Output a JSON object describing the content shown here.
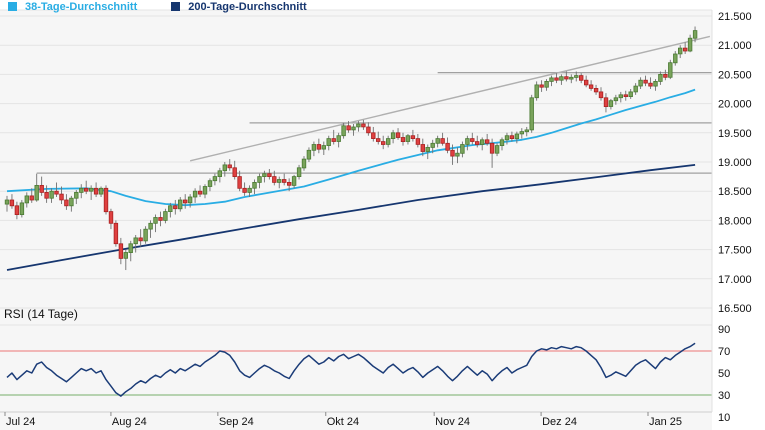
{
  "legend": {
    "items": [
      {
        "label": "38-Tage-Durchschnitt",
        "color": "#29ade4"
      },
      {
        "label": "200-Tage-Durchschnitt",
        "color": "#16366f"
      }
    ]
  },
  "rsi": {
    "title": "RSI (14 Tage)"
  },
  "chart_data": [
    {
      "type": "candlestick",
      "title": "",
      "y_axis": {
        "labels": [
          "21.500",
          "21.000",
          "20.500",
          "20.000",
          "19.500",
          "19.000",
          "18.500",
          "18.000",
          "17.500",
          "17.000",
          "16.500"
        ],
        "values": [
          21.5,
          21.0,
          20.5,
          20.0,
          19.5,
          19.0,
          18.5,
          18.0,
          17.5,
          17.0,
          16.5
        ],
        "range": [
          16.5,
          21.5
        ]
      },
      "x_axis": {
        "labels": [
          "Jul 24",
          "Aug 24",
          "Sep 24",
          "Okt 24",
          "Nov 24",
          "Dez 24",
          "Jan 25"
        ],
        "tick_indices": [
          0,
          21.4,
          43,
          64.8,
          86.7,
          108.3,
          129.9
        ]
      },
      "grid": true,
      "candle_colors": {
        "up_fill": "#79a35b",
        "up_border": "#4a7a33",
        "down_fill": "#df4040",
        "down_border": "#a82222",
        "wick": "#707070"
      },
      "candles": [
        [
          18.28,
          18.42,
          18.15,
          18.35
        ],
        [
          18.35,
          18.45,
          18.2,
          18.25
        ],
        [
          18.25,
          18.32,
          18.02,
          18.1
        ],
        [
          18.1,
          18.35,
          18.05,
          18.3
        ],
        [
          18.3,
          18.48,
          18.22,
          18.42
        ],
        [
          18.42,
          18.55,
          18.3,
          18.35
        ],
        [
          18.35,
          18.8,
          18.32,
          18.6
        ],
        [
          18.6,
          18.75,
          18.42,
          18.48
        ],
        [
          18.48,
          18.6,
          18.3,
          18.38
        ],
        [
          18.38,
          18.55,
          18.3,
          18.5
        ],
        [
          18.5,
          18.65,
          18.4,
          18.45
        ],
        [
          18.45,
          18.58,
          18.28,
          18.35
        ],
        [
          18.35,
          18.45,
          18.18,
          18.25
        ],
        [
          18.25,
          18.42,
          18.15,
          18.38
        ],
        [
          18.38,
          18.52,
          18.28,
          18.48
        ],
        [
          18.48,
          18.62,
          18.38,
          18.55
        ],
        [
          18.55,
          18.68,
          18.45,
          18.5
        ],
        [
          18.5,
          18.6,
          18.35,
          18.55
        ],
        [
          18.55,
          18.65,
          18.4,
          18.45
        ],
        [
          18.45,
          18.58,
          18.4,
          18.55
        ],
        [
          18.55,
          18.6,
          18.1,
          18.15
        ],
        [
          18.15,
          18.2,
          17.85,
          17.95
        ],
        [
          17.95,
          18.0,
          17.55,
          17.6
        ],
        [
          17.6,
          17.7,
          17.25,
          17.35
        ],
        [
          17.35,
          17.5,
          17.15,
          17.45
        ],
        [
          17.45,
          17.65,
          17.3,
          17.6
        ],
        [
          17.6,
          17.75,
          17.45,
          17.7
        ],
        [
          17.7,
          17.85,
          17.55,
          17.65
        ],
        [
          17.65,
          17.9,
          17.6,
          17.85
        ],
        [
          17.85,
          18.0,
          17.7,
          17.95
        ],
        [
          17.95,
          18.1,
          17.8,
          18.05
        ],
        [
          18.05,
          18.15,
          17.9,
          18.0
        ],
        [
          18.0,
          18.2,
          17.95,
          18.15
        ],
        [
          18.15,
          18.3,
          18.05,
          18.25
        ],
        [
          18.25,
          18.35,
          18.1,
          18.2
        ],
        [
          18.2,
          18.4,
          18.15,
          18.35
        ],
        [
          18.35,
          18.45,
          18.2,
          18.3
        ],
        [
          18.3,
          18.45,
          18.22,
          18.4
        ],
        [
          18.4,
          18.55,
          18.3,
          18.5
        ],
        [
          18.5,
          18.6,
          18.4,
          18.45
        ],
        [
          18.45,
          18.62,
          18.38,
          18.58
        ],
        [
          18.58,
          18.72,
          18.5,
          18.68
        ],
        [
          18.68,
          18.8,
          18.6,
          18.75
        ],
        [
          18.75,
          18.9,
          18.65,
          18.85
        ],
        [
          18.85,
          19.0,
          18.75,
          18.95
        ],
        [
          18.95,
          19.05,
          18.85,
          18.9
        ],
        [
          18.9,
          19.02,
          18.7,
          18.75
        ],
        [
          18.75,
          18.85,
          18.5,
          18.55
        ],
        [
          18.55,
          18.65,
          18.42,
          18.48
        ],
        [
          18.48,
          18.6,
          18.4,
          18.55
        ],
        [
          18.55,
          18.7,
          18.45,
          18.65
        ],
        [
          18.65,
          18.8,
          18.55,
          18.75
        ],
        [
          18.75,
          18.85,
          18.65,
          18.8
        ],
        [
          18.8,
          18.88,
          18.7,
          18.75
        ],
        [
          18.75,
          18.85,
          18.6,
          18.65
        ],
        [
          18.65,
          18.75,
          18.55,
          18.7
        ],
        [
          18.7,
          18.8,
          18.6,
          18.65
        ],
        [
          18.65,
          18.72,
          18.5,
          18.6
        ],
        [
          18.6,
          18.78,
          18.55,
          18.75
        ],
        [
          18.75,
          18.95,
          18.7,
          18.9
        ],
        [
          18.9,
          19.1,
          18.85,
          19.05
        ],
        [
          19.05,
          19.25,
          19.0,
          19.2
        ],
        [
          19.2,
          19.35,
          19.1,
          19.3
        ],
        [
          19.3,
          19.4,
          19.15,
          19.22
        ],
        [
          19.22,
          19.35,
          19.12,
          19.28
        ],
        [
          19.28,
          19.45,
          19.2,
          19.4
        ],
        [
          19.4,
          19.55,
          19.3,
          19.35
        ],
        [
          19.35,
          19.5,
          19.25,
          19.45
        ],
        [
          19.45,
          19.67,
          19.4,
          19.62
        ],
        [
          19.62,
          19.7,
          19.5,
          19.55
        ],
        [
          19.55,
          19.65,
          19.45,
          19.6
        ],
        [
          19.6,
          19.7,
          19.52,
          19.65
        ],
        [
          19.65,
          19.72,
          19.55,
          19.6
        ],
        [
          19.6,
          19.68,
          19.45,
          19.5
        ],
        [
          19.5,
          19.6,
          19.35,
          19.4
        ],
        [
          19.4,
          19.52,
          19.3,
          19.35
        ],
        [
          19.35,
          19.45,
          19.22,
          19.3
        ],
        [
          19.3,
          19.45,
          19.25,
          19.4
        ],
        [
          19.4,
          19.55,
          19.32,
          19.5
        ],
        [
          19.5,
          19.58,
          19.38,
          19.42
        ],
        [
          19.42,
          19.5,
          19.28,
          19.35
        ],
        [
          19.35,
          19.48,
          19.3,
          19.45
        ],
        [
          19.45,
          19.55,
          19.35,
          19.4
        ],
        [
          19.4,
          19.48,
          19.25,
          19.3
        ],
        [
          19.3,
          19.4,
          19.1,
          19.18
        ],
        [
          19.18,
          19.3,
          19.05,
          19.25
        ],
        [
          19.25,
          19.38,
          19.15,
          19.32
        ],
        [
          19.32,
          19.45,
          19.25,
          19.4
        ],
        [
          19.4,
          19.5,
          19.28,
          19.32
        ],
        [
          19.32,
          19.42,
          19.15,
          19.2
        ],
        [
          19.2,
          19.3,
          18.95,
          19.1
        ],
        [
          19.1,
          19.25,
          18.98,
          19.15
        ],
        [
          19.15,
          19.35,
          19.08,
          19.3
        ],
        [
          19.3,
          19.45,
          19.2,
          19.4
        ],
        [
          19.4,
          19.5,
          19.3,
          19.35
        ],
        [
          19.35,
          19.45,
          19.25,
          19.3
        ],
        [
          19.3,
          19.42,
          19.2,
          19.38
        ],
        [
          19.38,
          19.48,
          19.28,
          19.32
        ],
        [
          19.32,
          19.4,
          18.9,
          19.15
        ],
        [
          19.15,
          19.32,
          19.1,
          19.28
        ],
        [
          19.28,
          19.42,
          19.2,
          19.38
        ],
        [
          19.38,
          19.5,
          19.3,
          19.45
        ],
        [
          19.45,
          19.52,
          19.35,
          19.4
        ],
        [
          19.4,
          19.52,
          19.32,
          19.48
        ],
        [
          19.48,
          19.58,
          19.4,
          19.52
        ],
        [
          19.52,
          19.6,
          19.44,
          19.55
        ],
        [
          19.55,
          20.15,
          19.5,
          20.1
        ],
        [
          20.1,
          20.38,
          20.05,
          20.32
        ],
        [
          20.32,
          20.4,
          20.2,
          20.28
        ],
        [
          20.28,
          20.42,
          20.22,
          20.38
        ],
        [
          20.38,
          20.48,
          20.3,
          20.44
        ],
        [
          20.44,
          20.52,
          20.35,
          20.4
        ],
        [
          20.4,
          20.5,
          20.32,
          20.46
        ],
        [
          20.46,
          20.55,
          20.38,
          20.42
        ],
        [
          20.42,
          20.5,
          20.35,
          20.45
        ],
        [
          20.45,
          20.55,
          20.38,
          20.48
        ],
        [
          20.48,
          20.52,
          20.35,
          20.4
        ],
        [
          20.4,
          20.48,
          20.28,
          20.32
        ],
        [
          20.32,
          20.4,
          20.22,
          20.26
        ],
        [
          20.26,
          20.32,
          20.15,
          20.2
        ],
        [
          20.2,
          20.28,
          20.05,
          20.1
        ],
        [
          20.1,
          20.18,
          19.85,
          19.95
        ],
        [
          19.95,
          20.08,
          19.9,
          20.05
        ],
        [
          20.05,
          20.15,
          19.98,
          20.1
        ],
        [
          20.1,
          20.2,
          20.02,
          20.15
        ],
        [
          20.15,
          20.22,
          20.05,
          20.12
        ],
        [
          20.12,
          20.25,
          20.08,
          20.2
        ],
        [
          20.2,
          20.35,
          20.15,
          20.3
        ],
        [
          20.3,
          20.45,
          20.25,
          20.4
        ],
        [
          20.4,
          20.48,
          20.3,
          20.35
        ],
        [
          20.35,
          20.45,
          20.25,
          20.3
        ],
        [
          20.3,
          20.42,
          20.22,
          20.38
        ],
        [
          20.38,
          20.55,
          20.32,
          20.5
        ],
        [
          20.5,
          20.58,
          20.4,
          20.45
        ],
        [
          20.45,
          20.75,
          20.42,
          20.7
        ],
        [
          20.7,
          20.9,
          20.65,
          20.85
        ],
        [
          20.85,
          21.0,
          20.78,
          20.95
        ],
        [
          20.95,
          21.05,
          20.85,
          20.9
        ],
        [
          20.9,
          21.18,
          20.88,
          21.12
        ],
        [
          21.12,
          21.32,
          21.05,
          21.25
        ]
      ],
      "moving_averages": [
        {
          "name": "38-Tage-Durchschnitt",
          "color": "#29ade4",
          "points": [
            [
              0,
              18.5
            ],
            [
              8,
              18.54
            ],
            [
              16,
              18.55
            ],
            [
              21,
              18.5
            ],
            [
              24,
              18.42
            ],
            [
              28,
              18.33
            ],
            [
              32,
              18.28
            ],
            [
              36,
              18.26
            ],
            [
              40,
              18.28
            ],
            [
              44,
              18.32
            ],
            [
              48,
              18.4
            ],
            [
              52,
              18.46
            ],
            [
              56,
              18.52
            ],
            [
              60,
              18.58
            ],
            [
              65,
              18.7
            ],
            [
              71,
              18.85
            ],
            [
              79,
              19.04
            ],
            [
              87,
              19.2
            ],
            [
              94,
              19.29
            ],
            [
              101,
              19.35
            ],
            [
              104,
              19.38
            ],
            [
              107,
              19.43
            ],
            [
              110,
              19.5
            ],
            [
              113,
              19.58
            ],
            [
              116,
              19.66
            ],
            [
              119,
              19.73
            ],
            [
              122,
              19.81
            ],
            [
              125,
              19.89
            ],
            [
              128,
              19.96
            ],
            [
              131,
              20.03
            ],
            [
              134,
              20.11
            ],
            [
              137,
              20.18
            ],
            [
              139,
              20.24
            ]
          ]
        },
        {
          "name": "200-Tage-Durchschnitt",
          "color": "#16366f",
          "points": [
            [
              0,
              17.15
            ],
            [
              11,
              17.32
            ],
            [
              23,
              17.5
            ],
            [
              35,
              17.67
            ],
            [
              47,
              17.85
            ],
            [
              59,
              18.02
            ],
            [
              71,
              18.18
            ],
            [
              83,
              18.35
            ],
            [
              96,
              18.5
            ],
            [
              108,
              18.62
            ],
            [
              120,
              18.75
            ],
            [
              130,
              18.86
            ],
            [
              139,
              18.95
            ]
          ]
        }
      ],
      "trendline": {
        "from_index": 37,
        "from_price": 19.02,
        "to_index": 142,
        "to_price": 21.15,
        "color": "#b0b0b0"
      },
      "levels": [
        {
          "price": 18.81,
          "from_index": 6,
          "color": "#a0a0a0"
        },
        {
          "price": 19.67,
          "from_index": 49,
          "color": "#a0a0a0"
        },
        {
          "price": 20.53,
          "from_index": 87,
          "color": "#a0a0a0"
        }
      ]
    },
    {
      "type": "line",
      "name": "RSI (14 Tage)",
      "line_color": "#1b3c78",
      "y_ticks": [
        90,
        70,
        50,
        30,
        10
      ],
      "range": [
        10,
        90
      ],
      "overbought": {
        "value": 70,
        "color": "#ee9090"
      },
      "oversold": {
        "value": 30,
        "color": "#8fbc86"
      },
      "values": [
        46,
        50,
        44,
        48,
        52,
        50,
        58,
        60,
        55,
        52,
        48,
        45,
        42,
        46,
        50,
        54,
        52,
        54,
        50,
        52,
        44,
        38,
        32,
        29,
        33,
        36,
        40,
        43,
        41,
        45,
        48,
        46,
        50,
        53,
        50,
        54,
        52,
        55,
        58,
        56,
        60,
        63,
        66,
        70,
        69,
        66,
        60,
        52,
        48,
        46,
        50,
        54,
        57,
        55,
        52,
        50,
        47,
        45,
        52,
        58,
        63,
        66,
        62,
        58,
        60,
        64,
        61,
        65,
        67,
        63,
        65,
        67,
        64,
        60,
        56,
        53,
        50,
        55,
        58,
        54,
        50,
        53,
        55,
        51,
        46,
        50,
        53,
        56,
        52,
        47,
        43,
        47,
        52,
        56,
        52,
        48,
        52,
        49,
        43,
        48,
        52,
        55,
        50,
        53,
        55,
        57,
        65,
        70,
        72,
        71,
        73,
        72,
        74,
        73,
        72,
        74,
        73,
        70,
        66,
        62,
        55,
        46,
        48,
        51,
        49,
        47,
        52,
        57,
        60,
        62,
        58,
        54,
        60,
        64,
        62,
        66,
        69,
        72,
        74,
        77
      ]
    }
  ]
}
